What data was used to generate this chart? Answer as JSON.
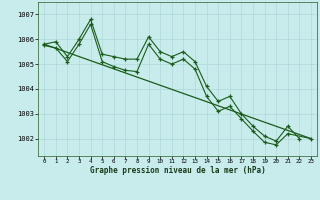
{
  "xlabel": "Graphe pression niveau de la mer (hPa)",
  "background_color": "#c8ecec",
  "grid_color": "#b0d8d8",
  "line_color": "#1a5c1a",
  "xlim": [
    -0.5,
    23.5
  ],
  "ylim": [
    1001.3,
    1007.5
  ],
  "yticks": [
    1002,
    1003,
    1004,
    1005,
    1006,
    1007
  ],
  "xticks": [
    0,
    1,
    2,
    3,
    4,
    5,
    6,
    7,
    8,
    9,
    10,
    11,
    12,
    13,
    14,
    15,
    16,
    17,
    18,
    19,
    20,
    21,
    22,
    23
  ],
  "series1_x": [
    0,
    1,
    2,
    3,
    4,
    5,
    6,
    7,
    8,
    9,
    10,
    11,
    12,
    13,
    14,
    15,
    16,
    17,
    18,
    19,
    20,
    21,
    22
  ],
  "series1_y": [
    1005.8,
    1005.9,
    1005.3,
    1006.0,
    1006.8,
    1005.4,
    1005.3,
    1005.2,
    1005.2,
    1006.1,
    1005.5,
    1005.3,
    1005.5,
    1005.1,
    1004.1,
    1003.5,
    1003.7,
    1003.0,
    1002.5,
    1002.1,
    1001.9,
    1002.5,
    1002.0
  ],
  "series2_x": [
    0,
    1,
    2,
    3,
    4,
    5,
    6,
    7,
    8,
    9,
    10,
    11,
    12,
    13,
    14,
    15,
    16,
    17,
    18,
    19,
    20,
    21,
    23
  ],
  "series2_y": [
    1005.75,
    1005.65,
    1005.1,
    1005.8,
    1006.6,
    1005.1,
    1004.9,
    1004.75,
    1004.7,
    1005.8,
    1005.2,
    1005.0,
    1005.2,
    1004.8,
    1003.7,
    1003.1,
    1003.3,
    1002.8,
    1002.3,
    1001.85,
    1001.75,
    1002.2,
    1002.0
  ],
  "trend_x": [
    0,
    23
  ],
  "trend_y": [
    1005.8,
    1002.0
  ]
}
